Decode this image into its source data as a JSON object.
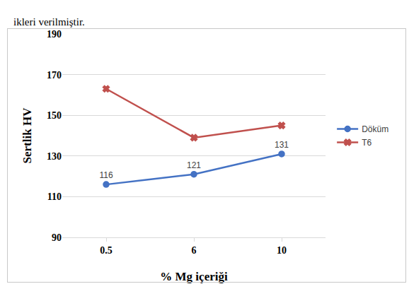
{
  "chart_data": {
    "type": "line",
    "annotations": [
      "ikleri verilmiştir."
    ],
    "x_label": "% Mg içeriği",
    "y_label": "Sertlik HV",
    "categories": [
      "0.5",
      "6",
      "10"
    ],
    "series": [
      {
        "name": "Döküm",
        "color": "#4472c4",
        "marker": "circle",
        "data_labels": true,
        "values": [
          116,
          121,
          131
        ]
      },
      {
        "name": "T6",
        "color": "#c0504d",
        "marker": "x",
        "values": [
          163,
          139,
          145
        ]
      }
    ],
    "ylim": [
      90,
      190
    ],
    "yticks": [
      90,
      110,
      130,
      150,
      170,
      190
    ],
    "grid": true,
    "legend": "right"
  }
}
